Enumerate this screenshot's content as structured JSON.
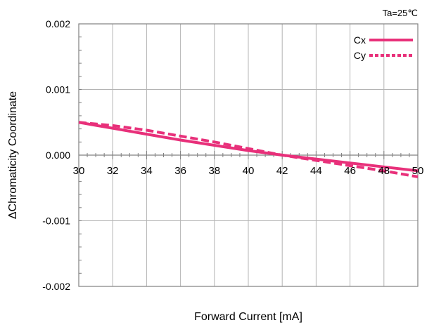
{
  "chart_data": {
    "type": "line",
    "annotation": "Ta=25℃",
    "xlabel": "Forward Current [mA]",
    "ylabel": "ΔChromaticity Coordinate",
    "xlim": [
      30,
      50
    ],
    "ylim": [
      -0.002,
      0.002
    ],
    "x_ticks": [
      30,
      32,
      34,
      36,
      38,
      40,
      42,
      44,
      46,
      48,
      50
    ],
    "x_tick_labels": [
      "30",
      "32",
      "34",
      "36",
      "38",
      "40",
      "42",
      "44",
      "46",
      "48",
      "50"
    ],
    "y_ticks": [
      0.002,
      0.001,
      0.0,
      -0.001,
      -0.002
    ],
    "y_tick_labels": [
      "0.002",
      "0.001",
      "0.000",
      "-0.001",
      "-0.002"
    ],
    "grid": true,
    "legend_position": "top-right",
    "color": "#e8307a",
    "series": [
      {
        "name": "Cx",
        "style": "solid",
        "x": [
          30,
          32,
          34,
          36,
          38,
          40,
          42,
          44,
          46,
          48,
          50
        ],
        "y": [
          0.0005,
          0.00041,
          0.00032,
          0.00023,
          0.00015,
          7e-05,
          0.0,
          -6e-05,
          -0.00012,
          -0.00018,
          -0.00024
        ]
      },
      {
        "name": "Cy",
        "style": "dashed",
        "x": [
          30,
          32,
          34,
          36,
          38,
          40,
          42,
          44,
          46,
          48,
          50
        ],
        "y": [
          0.0005,
          0.00045,
          0.00038,
          0.00029,
          0.0002,
          0.0001,
          0.0,
          -8e-05,
          -0.00016,
          -0.00024,
          -0.00033
        ]
      }
    ]
  }
}
